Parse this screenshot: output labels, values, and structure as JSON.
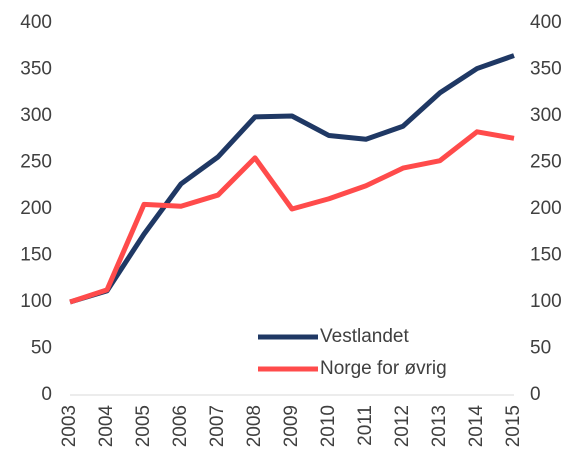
{
  "chart_data": {
    "type": "line",
    "x": [
      "2003",
      "2004",
      "2005",
      "2006",
      "2007",
      "2008",
      "2009",
      "2010",
      "2011",
      "2012",
      "2013",
      "2014",
      "2015"
    ],
    "series": [
      {
        "name": "Vestlandet",
        "color": "#1f3864",
        "values": [
          100,
          112,
          173,
          227,
          256,
          299,
          300,
          279,
          275,
          289,
          325,
          351,
          365
        ]
      },
      {
        "name": "Norge for øvrig",
        "color": "#ff4b4b",
        "values": [
          100,
          113,
          205,
          203,
          215,
          255,
          200,
          211,
          225,
          244,
          252,
          283,
          276
        ]
      }
    ],
    "ylim": [
      0,
      400
    ],
    "yticks": [
      0,
      50,
      100,
      150,
      200,
      250,
      300,
      350,
      400
    ],
    "y2lim": [
      0,
      400
    ],
    "y2ticks": [
      0,
      50,
      100,
      150,
      200,
      250,
      300,
      350,
      400
    ],
    "legend": "lower right"
  }
}
